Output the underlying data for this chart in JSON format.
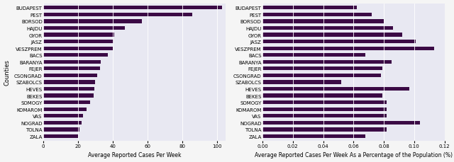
{
  "counties": [
    "BUDAPEST",
    "PEST",
    "BORSOD",
    "HAJDU",
    "GYOR",
    "JASZ",
    "VESZPREM",
    "BACS",
    "BARANYA",
    "FEJER",
    "CSONGRAD",
    "SZABOLCS",
    "HEVES",
    "BEKES",
    "SOMOGY",
    "KOMAROM",
    "VAS",
    "NOGRAD",
    "TOLNA",
    "ZALA"
  ],
  "avg_cases": [
    103,
    86,
    57,
    47,
    41,
    40.5,
    40,
    37,
    33,
    32.5,
    31,
    30,
    29.5,
    29,
    27,
    25,
    23,
    22,
    21,
    20
  ],
  "avg_pct": [
    0.062,
    0.072,
    0.08,
    0.086,
    0.092,
    0.101,
    0.113,
    0.068,
    0.085,
    0.079,
    0.078,
    0.052,
    0.097,
    0.079,
    0.082,
    0.082,
    0.082,
    0.104,
    0.082,
    0.068
  ],
  "bar_color": "#3b0a45",
  "bg_color": "#e8e8f2",
  "fig_bg_color": "#f5f5f5",
  "xlabel1": "Average Reported Cases Per Week",
  "xlabel2": "Average Reported Cases Per Week As a Percentage of the Population (%)",
  "ylabel": "Counties",
  "xlim1": [
    0,
    105
  ],
  "xlim2": [
    0.0,
    0.12
  ],
  "label_fontsize": 5.5,
  "tick_fontsize": 5.0,
  "ylabel_fontsize": 6.0
}
